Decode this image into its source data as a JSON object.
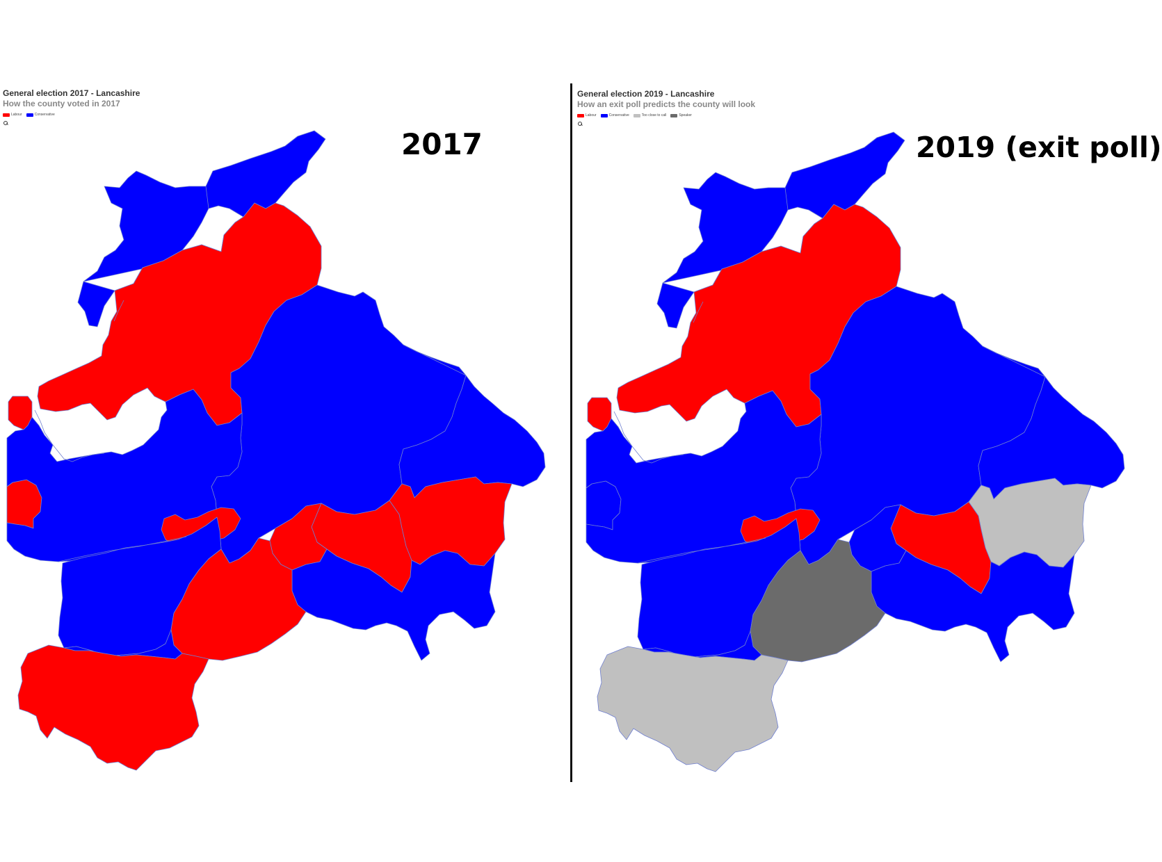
{
  "colors": {
    "labour": "#ff0000",
    "conservative": "#0000ff",
    "too_close": "#c0c0c0",
    "speaker": "#6b6b6b",
    "divider": "#111111"
  },
  "panels": [
    {
      "id": "2017",
      "title": "General election 2017 - Lancashire",
      "subtitle": "How the county voted in 2017",
      "legend": [
        {
          "label": "Labour",
          "color": "#ff0000"
        },
        {
          "label": "Conservative",
          "color": "#0000ff"
        }
      ],
      "zoom_icon": "search-icon",
      "big_label": "2017",
      "regions": {
        "north": "conservative",
        "lancaster": "labour",
        "ribble_valley": "conservative",
        "blackpool_north": "labour",
        "blackpool_south": "labour",
        "fylde": "conservative",
        "preston": "labour",
        "pendle_burnley": "labour",
        "east_lancs": "conservative",
        "rossendale": "conservative",
        "hyndburn": "labour",
        "blackburn": "labour",
        "chorley": "labour",
        "west_lancs": "labour",
        "south_ribble": "conservative",
        "south_strip": "conservative"
      }
    },
    {
      "id": "2019",
      "title": "General election 2019 - Lancashire",
      "subtitle": "How an exit poll predicts the county will look",
      "legend": [
        {
          "label": "Labour",
          "color": "#ff0000"
        },
        {
          "label": "Conservative",
          "color": "#0000ff"
        },
        {
          "label": "Too close to call",
          "color": "#c0c0c0"
        },
        {
          "label": "Speaker",
          "color": "#6b6b6b"
        }
      ],
      "zoom_icon": "search-icon",
      "big_label": "2019 (exit poll)",
      "regions": {
        "north": "conservative",
        "lancaster": "labour",
        "ribble_valley": "conservative",
        "blackpool_north": "labour",
        "blackpool_south": "conservative",
        "fylde": "conservative",
        "preston": "labour",
        "pendle_burnley": "too_close",
        "east_lancs": "conservative",
        "rossendale": "conservative",
        "hyndburn": "labour",
        "blackburn": "conservative",
        "chorley": "speaker",
        "west_lancs": "too_close",
        "south_ribble": "conservative",
        "south_strip": "conservative"
      }
    }
  ]
}
